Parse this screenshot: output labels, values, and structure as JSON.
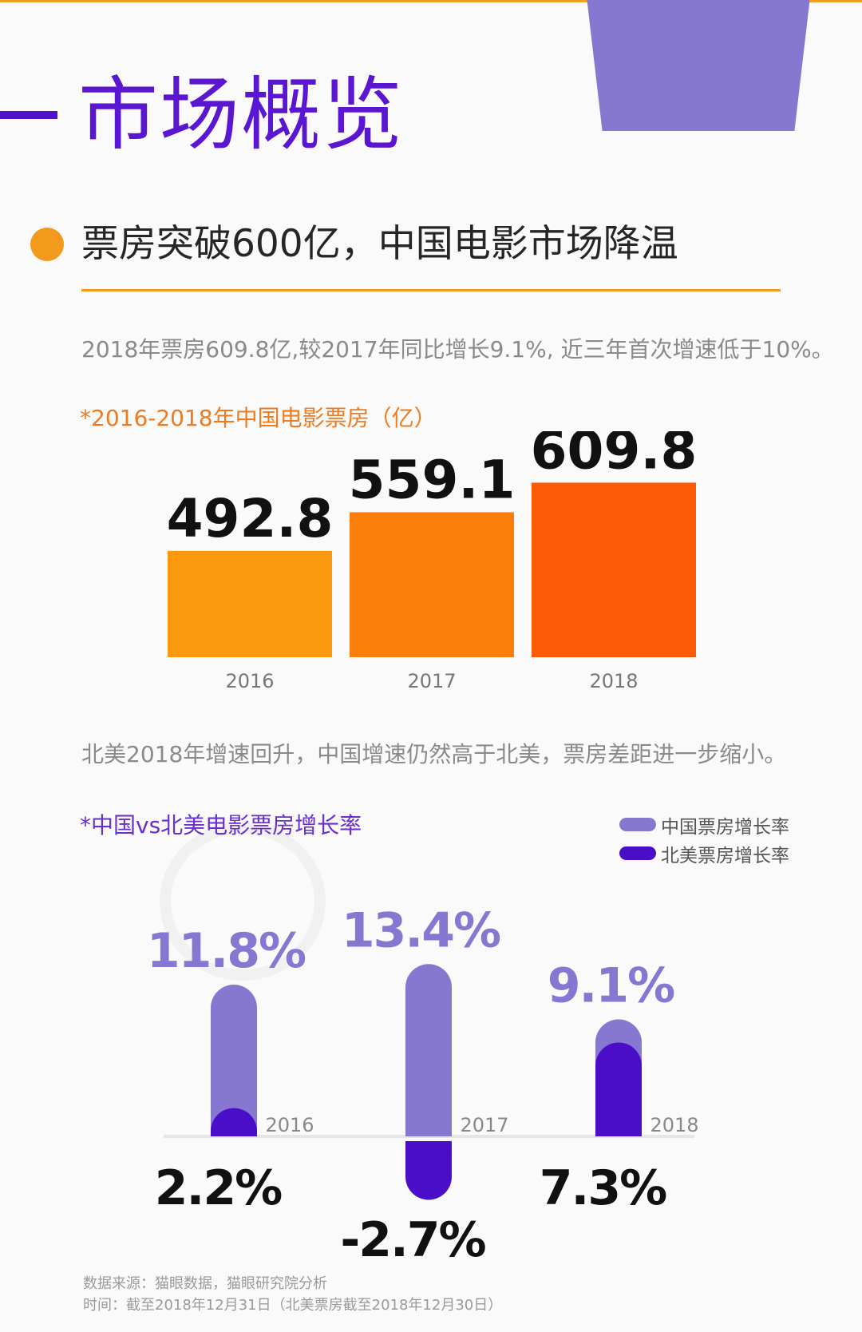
{
  "header": {
    "title": "市场概览"
  },
  "section": {
    "heading": "票房突破600亿，中国电影市场降温"
  },
  "text": {
    "para1": "2018年票房609.8亿,较2017年同比增长9.1%, 近三年首次增速低于10%。",
    "para2": "北美2018年增速回升，中国增速仍然高于北美，票房差距进一步缩小。"
  },
  "colors": {
    "accent_orange": "#f39a1c",
    "title_purple": "#5b16d2",
    "china_series": "#8678d0",
    "na_series": "#4b0ec8",
    "bar_2016": "#fb9a0e",
    "bar_2017": "#fb7e0a",
    "bar_2018": "#fc5a04"
  },
  "chart_data": [
    {
      "type": "bar",
      "title": "*2016-2018年中国电影票房（亿）",
      "categories": [
        "2016",
        "2017",
        "2018"
      ],
      "values": [
        492.8,
        559.1,
        609.8
      ],
      "value_labels": [
        "492.8",
        "559.1",
        "609.8"
      ],
      "xlabel": "",
      "ylabel": "",
      "grid": false
    },
    {
      "type": "bar",
      "title": "*中国vs北美电影票房增长率",
      "categories": [
        "2016",
        "2017",
        "2018"
      ],
      "series": [
        {
          "name": "中国票房增长率",
          "values": [
            11.8,
            13.4,
            9.1
          ],
          "labels": [
            "11.8%",
            "13.4%",
            "9.1%"
          ]
        },
        {
          "name": "北美票房增长率",
          "values": [
            2.2,
            -2.7,
            7.3
          ],
          "labels": [
            "2.2%",
            "-2.7%",
            "7.3%"
          ]
        }
      ],
      "legend": "top-right",
      "grid": false
    }
  ],
  "source": {
    "line1": "数据来源：猫眼数据，猫眼研究院分析",
    "line2": "时间：截至2018年12月31日（北美票房截至2018年12月30日）"
  }
}
